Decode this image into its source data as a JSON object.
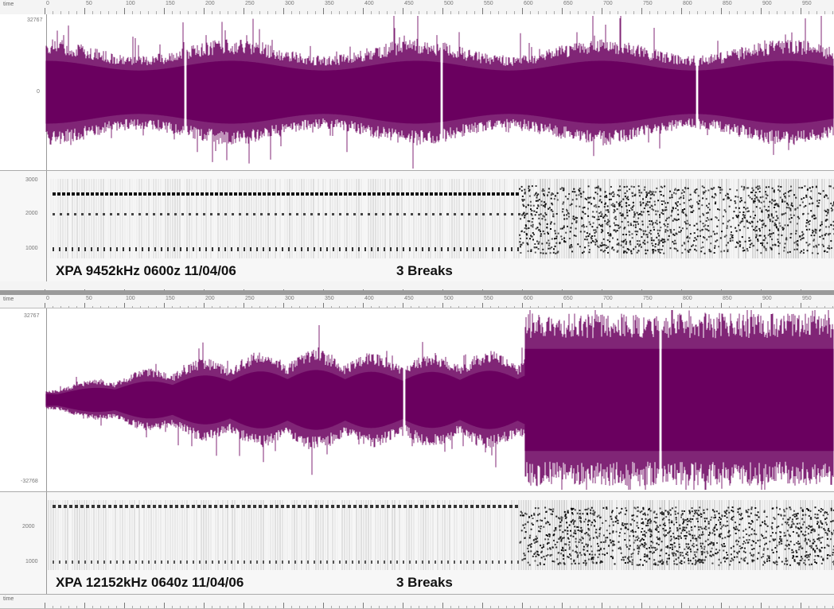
{
  "ruler_unit": "time",
  "ruler_ticks": [
    "0",
    "50",
    "100",
    "150",
    "200",
    "250",
    "300",
    "350",
    "400",
    "450",
    "500",
    "550",
    "600",
    "650",
    "700",
    "750",
    "800",
    "850",
    "900",
    "950"
  ],
  "top": {
    "caption": "XPA 9452kHz 0600z  11/04/06",
    "breaks": "3 Breaks",
    "wave_color": "#6a005f",
    "wave_ymax": "32767",
    "wave_ymid": "0",
    "spec_y": [
      "3000",
      "2000",
      "1000"
    ]
  },
  "bottom": {
    "caption": "XPA 12152kHz 0640z 11/04/06",
    "breaks": "3 Breaks",
    "wave_color": "#6a005f",
    "wave_ymax": "32767",
    "wave_ymin": "-32768",
    "spec_y": [
      "2000",
      "1000"
    ]
  }
}
